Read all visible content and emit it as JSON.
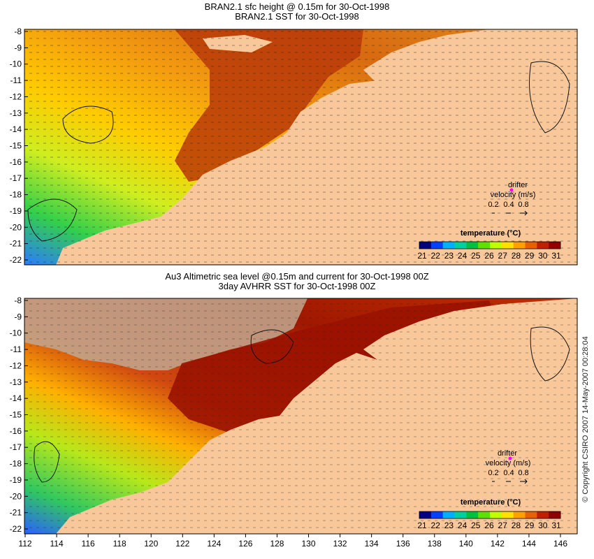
{
  "panels": [
    {
      "title_line1": "BRAN2.1 sfc height @ 0.15m for 30-Oct-1998",
      "title_line2": "BRAN2.1 SST for 30-Oct-1998",
      "y_ticks": [
        "-8",
        "-9",
        "-10",
        "-11",
        "-12",
        "-13",
        "-14",
        "-15",
        "-16",
        "-17",
        "-18",
        "-19",
        "-20",
        "-21",
        "-22"
      ],
      "legend": {
        "drifter_label": "drifter",
        "velocity_label": "velocity (m/s)",
        "scale_values": [
          "0.2",
          "0.4",
          "0.8"
        ],
        "colorbar_title": "temperature (°C)",
        "colorbar_ticks": [
          "21",
          "22",
          "23",
          "24",
          "25",
          "26",
          "27",
          "28",
          "29",
          "30",
          "31"
        ]
      }
    },
    {
      "title_line1": "Au3 Altimetric sea level  @0.15m and current for 30-Oct-1998 00Z",
      "title_line2": "3day AVHRR SST for 30-Oct-1998 00Z",
      "y_ticks": [
        "-8",
        "-9",
        "-10",
        "-11",
        "-12",
        "-13",
        "-14",
        "-15",
        "-16",
        "-17",
        "-18",
        "-19",
        "-20",
        "-21",
        "-22"
      ],
      "legend": {
        "drifter_label": "drifter",
        "velocity_label": "velocity (m/s)",
        "scale_values": [
          "0.2",
          "0.4",
          "0.8"
        ],
        "colorbar_title": "temperature (°C)",
        "colorbar_ticks": [
          "21",
          "22",
          "23",
          "24",
          "25",
          "26",
          "27",
          "28",
          "29",
          "30",
          "31"
        ]
      }
    }
  ],
  "x_ticks": [
    "112",
    "114",
    "116",
    "118",
    "120",
    "122",
    "124",
    "126",
    "128",
    "130",
    "132",
    "134",
    "136",
    "138",
    "140",
    "142",
    "144",
    "146"
  ],
  "copyright": "© Copyright CSIRO 2007   14-May-2007 00:28:04",
  "colors": {
    "land": "#f9c89a",
    "no_data": "#c2a890",
    "colorbar": [
      "#000080",
      "#0040ff",
      "#00b0ff",
      "#00d0a0",
      "#00c040",
      "#60e000",
      "#c0ff00",
      "#ffe000",
      "#ffa000",
      "#e86000",
      "#c02000",
      "#900000"
    ]
  }
}
